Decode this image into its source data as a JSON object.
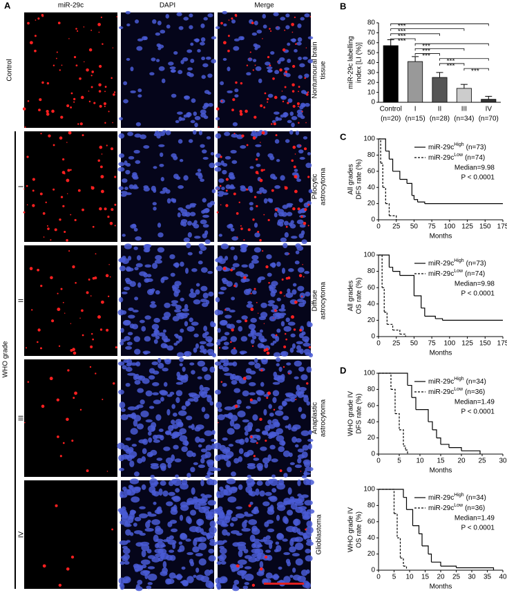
{
  "panel_a": {
    "letter": "A",
    "columns": [
      "miR-29c",
      "DAPI",
      "Merge"
    ],
    "control_label": "Control",
    "grade_label": "WHO grade",
    "grades": [
      "I",
      "II",
      "III",
      "IV"
    ],
    "tissues": [
      [
        "Nontumoural brain",
        "tissue"
      ],
      [
        "Pilocytic",
        "astrocytoma"
      ],
      [
        "Diffuse",
        "astrocytoma"
      ],
      [
        "Anaplastic",
        "astrocytoma"
      ],
      [
        "Glioblastoma"
      ]
    ]
  },
  "chart_data": [
    {
      "type": "bar",
      "letter": "B",
      "y_label": [
        "miR-29c labelling",
        "index [LI (%)]"
      ],
      "categories": [
        "Control",
        "I",
        "II",
        "III",
        "IV"
      ],
      "n_labels": [
        "(n=20)",
        "(n=15)",
        "(n=28)",
        "(n=34)",
        "(n=70)"
      ],
      "values": [
        57,
        41,
        25,
        14,
        3
      ],
      "errors": [
        6,
        5,
        5,
        4,
        3
      ],
      "colors": [
        "#000000",
        "#999999",
        "#555555",
        "#cccccc",
        "#333333"
      ],
      "ylim": [
        0,
        80
      ],
      "yticks": [
        0,
        10,
        20,
        30,
        40,
        50,
        60,
        70,
        80
      ],
      "comparisons": [
        {
          "between": [
            0,
            4
          ],
          "label": "***"
        },
        {
          "between": [
            0,
            3
          ],
          "label": "***"
        },
        {
          "between": [
            0,
            2
          ],
          "label": "***"
        },
        {
          "between": [
            0,
            1
          ],
          "label": "***"
        },
        {
          "between": [
            1,
            4
          ],
          "label": "***"
        },
        {
          "between": [
            1,
            3
          ],
          "label": "***"
        },
        {
          "between": [
            1,
            2
          ],
          "label": "***"
        },
        {
          "between": [
            2,
            4
          ],
          "label": "***"
        },
        {
          "between": [
            2,
            3
          ],
          "label": "***"
        },
        {
          "between": [
            3,
            4
          ],
          "label": "***"
        }
      ]
    },
    {
      "type": "survival",
      "letter": "C",
      "y_label": [
        "All grades",
        "DFS rate (%)"
      ],
      "x_label": "Months",
      "xlim": [
        0,
        175
      ],
      "xticks": [
        0,
        25,
        50,
        75,
        100,
        125,
        150,
        175
      ],
      "ylim": [
        0,
        100
      ],
      "yticks": [
        0,
        20,
        40,
        60,
        80,
        100
      ],
      "median": "Median=9.98",
      "p_value": "P < 0.0001",
      "series": [
        {
          "name": "miR-29c",
          "superscript": "High",
          "n": "(n=73)",
          "dashed": false,
          "x": [
            0,
            10,
            15,
            20,
            30,
            40,
            47,
            50,
            55,
            65,
            175
          ],
          "values": [
            100,
            85,
            75,
            60,
            50,
            45,
            30,
            25,
            22,
            20,
            20
          ]
        },
        {
          "name": "miR-29c",
          "superscript": "Low",
          "n": "(n=74)",
          "dashed": true,
          "x": [
            0,
            3,
            6,
            10,
            15,
            25
          ],
          "values": [
            100,
            70,
            40,
            20,
            5,
            0
          ]
        }
      ]
    },
    {
      "type": "survival",
      "y_label": [
        "All grades",
        "OS rate (%)"
      ],
      "x_label": "Months",
      "xlim": [
        0,
        175
      ],
      "xticks": [
        0,
        25,
        50,
        75,
        100,
        125,
        150,
        175
      ],
      "ylim": [
        0,
        100
      ],
      "yticks": [
        0,
        20,
        40,
        60,
        80,
        100
      ],
      "median": "Median=9.98",
      "p_value": "P < 0.0001",
      "series": [
        {
          "name": "miR-29c",
          "superscript": "High",
          "n": "(n=73)",
          "dashed": false,
          "x": [
            0,
            15,
            20,
            30,
            50,
            60,
            65,
            80,
            90,
            175
          ],
          "values": [
            100,
            85,
            80,
            75,
            50,
            35,
            25,
            22,
            20,
            20
          ]
        },
        {
          "name": "miR-29c",
          "superscript": "Low",
          "n": "(n=74)",
          "dashed": true,
          "x": [
            0,
            5,
            8,
            12,
            20,
            30,
            38
          ],
          "values": [
            100,
            60,
            30,
            15,
            8,
            3,
            0
          ]
        }
      ]
    },
    {
      "type": "survival",
      "letter": "D",
      "y_label": [
        "WHO grade IV",
        "DFS rate (%)"
      ],
      "x_label": "Months",
      "xlim": [
        0,
        30
      ],
      "xticks": [
        0,
        5,
        10,
        15,
        20,
        25,
        30
      ],
      "ylim": [
        0,
        100
      ],
      "yticks": [
        0,
        20,
        40,
        60,
        80,
        100
      ],
      "median": "Median=1.49",
      "p_value": "P < 0.0001",
      "series": [
        {
          "name": "miR-29c",
          "superscript": "High",
          "n": "(n=34)",
          "dashed": false,
          "x": [
            0,
            7,
            8,
            9,
            10,
            12,
            13,
            14,
            15,
            17,
            20,
            24.5
          ],
          "values": [
            100,
            85,
            70,
            55,
            55,
            40,
            30,
            20,
            12,
            8,
            4,
            0
          ]
        },
        {
          "name": "miR-29c",
          "superscript": "Low",
          "n": "(n=36)",
          "dashed": true,
          "x": [
            0,
            3,
            4,
            5,
            6,
            6.5,
            7
          ],
          "values": [
            100,
            80,
            50,
            30,
            10,
            5,
            0
          ]
        }
      ]
    },
    {
      "type": "survival",
      "y_label": [
        "WHO grade IV",
        "OS rate (%)"
      ],
      "x_label": "Months",
      "xlim": [
        0,
        40
      ],
      "xticks": [
        0,
        5,
        10,
        15,
        20,
        25,
        30,
        35,
        40
      ],
      "ylim": [
        0,
        100
      ],
      "yticks": [
        0,
        20,
        40,
        60,
        80,
        100
      ],
      "median": "Median=1.49",
      "p_value": "P < 0.0001",
      "series": [
        {
          "name": "miR-29c",
          "superscript": "High",
          "n": "(n=34)",
          "dashed": false,
          "x": [
            0,
            8,
            9,
            11,
            13,
            14,
            16,
            17,
            20,
            25,
            37
          ],
          "values": [
            100,
            90,
            75,
            55,
            45,
            30,
            20,
            10,
            5,
            3,
            0
          ]
        },
        {
          "name": "miR-29c",
          "superscript": "Low",
          "n": "(n=36)",
          "dashed": true,
          "x": [
            0,
            5,
            6,
            7,
            8,
            9
          ],
          "values": [
            100,
            70,
            40,
            15,
            5,
            0
          ]
        }
      ]
    }
  ]
}
